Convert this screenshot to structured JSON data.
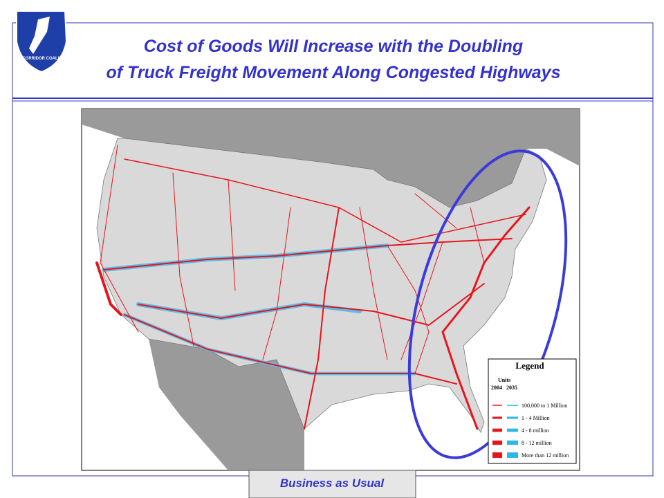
{
  "header": {
    "logo_text": "I-95 CORRIDOR COALITION",
    "title_lines": [
      "Cost of Goods Will Increase with the Doubling",
      "of Truck Freight Movement Along Congested Highways"
    ]
  },
  "legend": {
    "title": "Legend",
    "units_label": "Units",
    "years": [
      "2004",
      "2035"
    ],
    "entries": [
      "100,000 to 1 Million",
      "1 - 4 Million",
      "4 - 8 million",
      "8 - 12 million",
      "More than 12 million"
    ]
  },
  "footer": {
    "label": "Business as Usual"
  }
}
